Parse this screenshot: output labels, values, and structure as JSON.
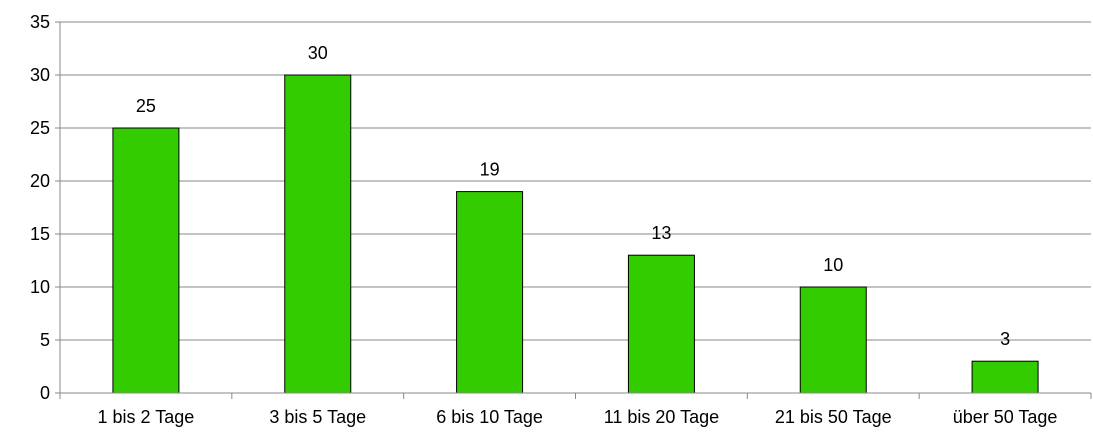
{
  "chart_data": {
    "type": "bar",
    "categories": [
      "1 bis 2 Tage",
      "3 bis 5 Tage",
      "6 bis 10 Tage",
      "11 bis 20 Tage",
      "21 bis 50 Tage",
      "über 50 Tage"
    ],
    "values": [
      25,
      30,
      19,
      13,
      10,
      3
    ],
    "data_labels": [
      "25",
      "30",
      "19",
      "13",
      "10",
      "3"
    ],
    "y_ticks": [
      "0",
      "5",
      "10",
      "15",
      "20",
      "25",
      "30",
      "35"
    ],
    "ylim": [
      0,
      35
    ],
    "grid": true,
    "legend": "none",
    "bar_color": "#33cc00",
    "bar_edge_color": "#000000",
    "grid_color": "#888888"
  }
}
